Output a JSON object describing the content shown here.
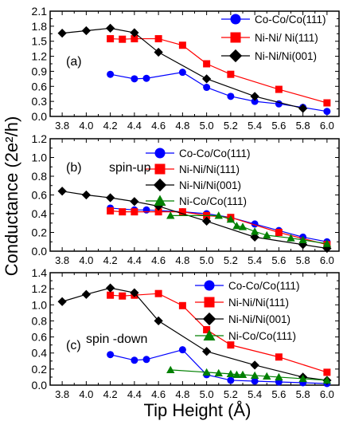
{
  "figure": {
    "ylabel": "Conductance (2e²/h)",
    "xlabel": "Tip Height (Å)"
  },
  "chart_data": [
    {
      "type": "line",
      "panel_label": "(a)",
      "annotation": "",
      "x_ticks": [
        "3.8",
        "4.0",
        "4.2",
        "4.4",
        "4.6",
        "4.8",
        "5.0",
        "5.2",
        "5.4",
        "5.6",
        "5.8",
        "6.0"
      ],
      "y_ticks": [
        "0.0",
        "0.3",
        "0.6",
        "0.9",
        "1.2",
        "1.5",
        "1.8",
        "2.1"
      ],
      "xlim": [
        3.7,
        6.1
      ],
      "ylim": [
        0,
        2.1
      ],
      "legend_position": "top-right",
      "series": [
        {
          "name": "Co-Co/Co(111)",
          "color": "#0000ff",
          "marker": "circle",
          "x": [
            4.2,
            4.4,
            4.5,
            4.8,
            5.0,
            5.2,
            5.4,
            5.6,
            5.8,
            6.0
          ],
          "y": [
            0.84,
            0.75,
            0.76,
            0.88,
            0.58,
            0.4,
            0.3,
            0.25,
            0.18,
            0.1
          ]
        },
        {
          "name": "Ni-Ni/ Ni(111)",
          "color": "#ff0000",
          "marker": "square",
          "x": [
            4.2,
            4.3,
            4.4,
            4.6,
            4.8,
            5.0,
            5.2,
            5.6,
            6.0
          ],
          "y": [
            1.55,
            1.54,
            1.55,
            1.55,
            1.42,
            1.05,
            0.84,
            0.54,
            0.27
          ]
        },
        {
          "name": "Ni-Ni/Ni(001)",
          "color": "#000000",
          "marker": "diamond",
          "x": [
            3.8,
            4.0,
            4.2,
            4.4,
            4.6,
            5.0,
            5.4,
            5.8
          ],
          "y": [
            1.66,
            1.71,
            1.76,
            1.67,
            1.28,
            0.75,
            0.4,
            0.16
          ]
        }
      ]
    },
    {
      "type": "line",
      "panel_label": "(b)",
      "annotation": "spin-up",
      "x_ticks": [
        "3.8",
        "4.0",
        "4.2",
        "4.4",
        "4.6",
        "4.8",
        "5.0",
        "5.2",
        "5.4",
        "5.6",
        "5.8",
        "6.0"
      ],
      "y_ticks": [
        "0.0",
        "0.2",
        "0.4",
        "0.6",
        "0.8",
        "1.0",
        "1.2"
      ],
      "xlim": [
        3.7,
        6.1
      ],
      "ylim": [
        0,
        1.2
      ],
      "legend_position": "top-right",
      "series": [
        {
          "name": "Co-Co/Co(111)",
          "color": "#0000ff",
          "marker": "circle",
          "x": [
            4.2,
            4.4,
            4.5,
            4.8,
            5.0,
            5.2,
            5.4,
            5.6,
            5.8,
            6.0
          ],
          "y": [
            0.46,
            0.44,
            0.44,
            0.42,
            0.4,
            0.36,
            0.29,
            0.22,
            0.15,
            0.1
          ]
        },
        {
          "name": "Ni-Ni/Ni(111)",
          "color": "#ff0000",
          "marker": "square",
          "x": [
            4.2,
            4.3,
            4.4,
            4.6,
            4.8,
            5.0,
            5.2,
            5.6,
            6.0
          ],
          "y": [
            0.43,
            0.42,
            0.42,
            0.42,
            0.42,
            0.38,
            0.36,
            0.2,
            0.07
          ]
        },
        {
          "name": "Ni-Ni/Ni(001)",
          "color": "#000000",
          "marker": "diamond",
          "x": [
            3.8,
            4.0,
            4.2,
            4.4,
            4.6,
            5.0,
            5.4,
            5.8,
            6.0
          ],
          "y": [
            0.64,
            0.6,
            0.57,
            0.53,
            0.48,
            0.32,
            0.15,
            0.07,
            0.03
          ]
        },
        {
          "name": "Ni-Co/Co(111)",
          "color": "#008000",
          "marker": "triangle",
          "x": [
            4.7,
            5.1,
            5.2,
            5.25,
            5.3,
            5.4,
            5.5,
            5.7,
            5.8,
            6.0
          ],
          "y": [
            0.38,
            0.38,
            0.34,
            0.27,
            0.26,
            0.21,
            0.17,
            0.14,
            0.12,
            0.08
          ]
        }
      ]
    },
    {
      "type": "line",
      "panel_label": "(c)",
      "annotation": "spin -down",
      "x_ticks": [
        "3.8",
        "4.0",
        "4.2",
        "4.4",
        "4.6",
        "4.8",
        "5.0",
        "5.2",
        "5.4",
        "5.6",
        "5.8",
        "6.0"
      ],
      "y_ticks": [
        "0.0",
        "0.2",
        "0.4",
        "0.6",
        "0.8",
        "1.0",
        "1.2",
        "1.4"
      ],
      "xlim": [
        3.7,
        6.1
      ],
      "ylim": [
        0,
        1.4
      ],
      "legend_position": "top-right",
      "series": [
        {
          "name": "Co-Co/Co(111)",
          "color": "#0000ff",
          "marker": "circle",
          "x": [
            4.2,
            4.4,
            4.5,
            4.8,
            5.0,
            5.2,
            5.4,
            5.6,
            5.8,
            6.0
          ],
          "y": [
            0.38,
            0.31,
            0.32,
            0.44,
            0.13,
            0.06,
            0.05,
            0.04,
            0.03,
            0.02
          ]
        },
        {
          "name": "Ni-Ni/Ni(111)",
          "color": "#ff0000",
          "marker": "square",
          "x": [
            4.2,
            4.3,
            4.4,
            4.6,
            4.8,
            5.0,
            5.2,
            5.6,
            6.0
          ],
          "y": [
            1.12,
            1.11,
            1.12,
            1.14,
            0.99,
            0.69,
            0.5,
            0.35,
            0.16
          ]
        },
        {
          "name": "Ni-Ni/Ni(001)",
          "color": "#000000",
          "marker": "diamond",
          "x": [
            3.8,
            4.0,
            4.2,
            4.4,
            4.6,
            5.0,
            5.4,
            5.8,
            6.0
          ],
          "y": [
            1.04,
            1.13,
            1.21,
            1.15,
            0.8,
            0.42,
            0.25,
            0.1,
            0.06
          ]
        },
        {
          "name": "Ni-Co/Co(111)",
          "color": "#008000",
          "marker": "triangle",
          "x": [
            4.7,
            5.0,
            5.1,
            5.2,
            5.25,
            5.3,
            5.4,
            5.5,
            5.6,
            5.8,
            6.0
          ],
          "y": [
            0.19,
            0.16,
            0.15,
            0.14,
            0.13,
            0.13,
            0.12,
            0.11,
            0.1,
            0.08,
            0.06
          ]
        }
      ]
    }
  ]
}
